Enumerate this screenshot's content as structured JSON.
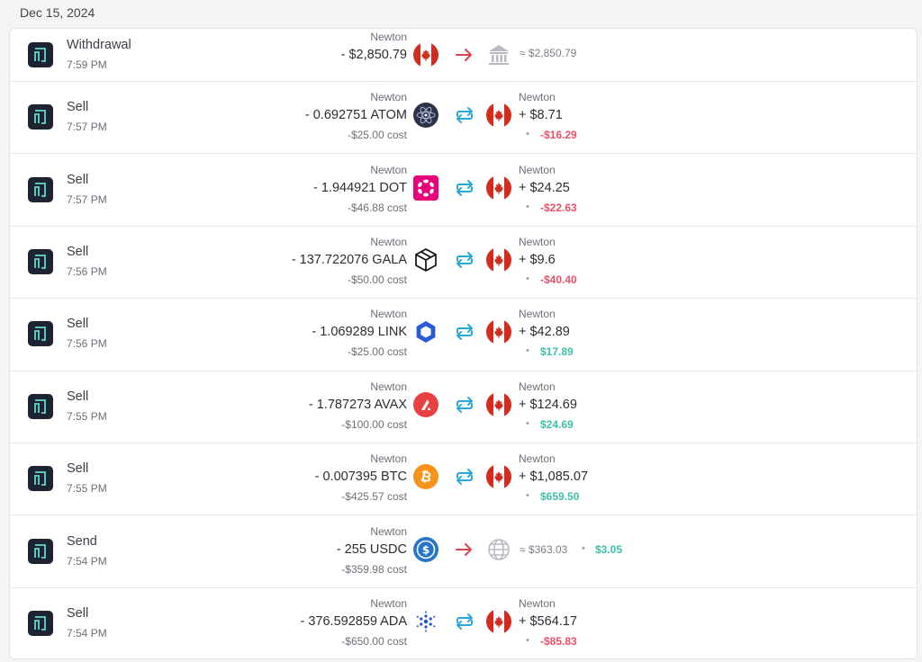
{
  "date": "Dec 15, 2024",
  "transactions": [
    {
      "type": "Withdrawal",
      "time": "7:59 PM",
      "from": {
        "label": "Newton",
        "amount": "- $2,850.79"
      },
      "to": {
        "amount": "≈ $2,850.79"
      }
    },
    {
      "type": "Sell",
      "time": "7:57 PM",
      "from": {
        "label": "Newton",
        "amount": "- 0.692751 ATOM",
        "cost": "-$25.00 cost"
      },
      "to": {
        "label": "Newton",
        "amount": "+ $8.71",
        "pnl": "-$16.29"
      }
    },
    {
      "type": "Sell",
      "time": "7:57 PM",
      "from": {
        "label": "Newton",
        "amount": "- 1.944921 DOT",
        "cost": "-$46.88 cost"
      },
      "to": {
        "label": "Newton",
        "amount": "+ $24.25",
        "pnl": "-$22.63"
      }
    },
    {
      "type": "Sell",
      "time": "7:56 PM",
      "from": {
        "label": "Newton",
        "amount": "- 137.722076 GALA",
        "cost": "-$50.00 cost"
      },
      "to": {
        "label": "Newton",
        "amount": "+ $9.6",
        "pnl": "-$40.40"
      }
    },
    {
      "type": "Sell",
      "time": "7:56 PM",
      "from": {
        "label": "Newton",
        "amount": "- 1.069289 LINK",
        "cost": "-$25.00 cost"
      },
      "to": {
        "label": "Newton",
        "amount": "+ $42.89",
        "pnl": "$17.89"
      }
    },
    {
      "type": "Sell",
      "time": "7:55 PM",
      "from": {
        "label": "Newton",
        "amount": "- 1.787273 AVAX",
        "cost": "-$100.00 cost"
      },
      "to": {
        "label": "Newton",
        "amount": "+ $124.69",
        "pnl": "$24.69"
      }
    },
    {
      "type": "Sell",
      "time": "7:55 PM",
      "from": {
        "label": "Newton",
        "amount": "- 0.007395 BTC",
        "cost": "-$425.57 cost"
      },
      "to": {
        "label": "Newton",
        "amount": "+ $1,085.07",
        "pnl": "$659.50"
      }
    },
    {
      "type": "Send",
      "time": "7:54 PM",
      "from": {
        "label": "Newton",
        "amount": "- 255 USDC",
        "cost": "-$359.98 cost"
      },
      "to": {
        "amount": "≈ $363.03",
        "pnl": "$3.05"
      }
    },
    {
      "type": "Sell",
      "time": "7:54 PM",
      "from": {
        "label": "Newton",
        "amount": "- 376.592859 ADA",
        "cost": "-$650.00 cost"
      },
      "to": {
        "label": "Newton",
        "amount": "+ $564.17",
        "pnl": "-$85.83"
      }
    }
  ]
}
